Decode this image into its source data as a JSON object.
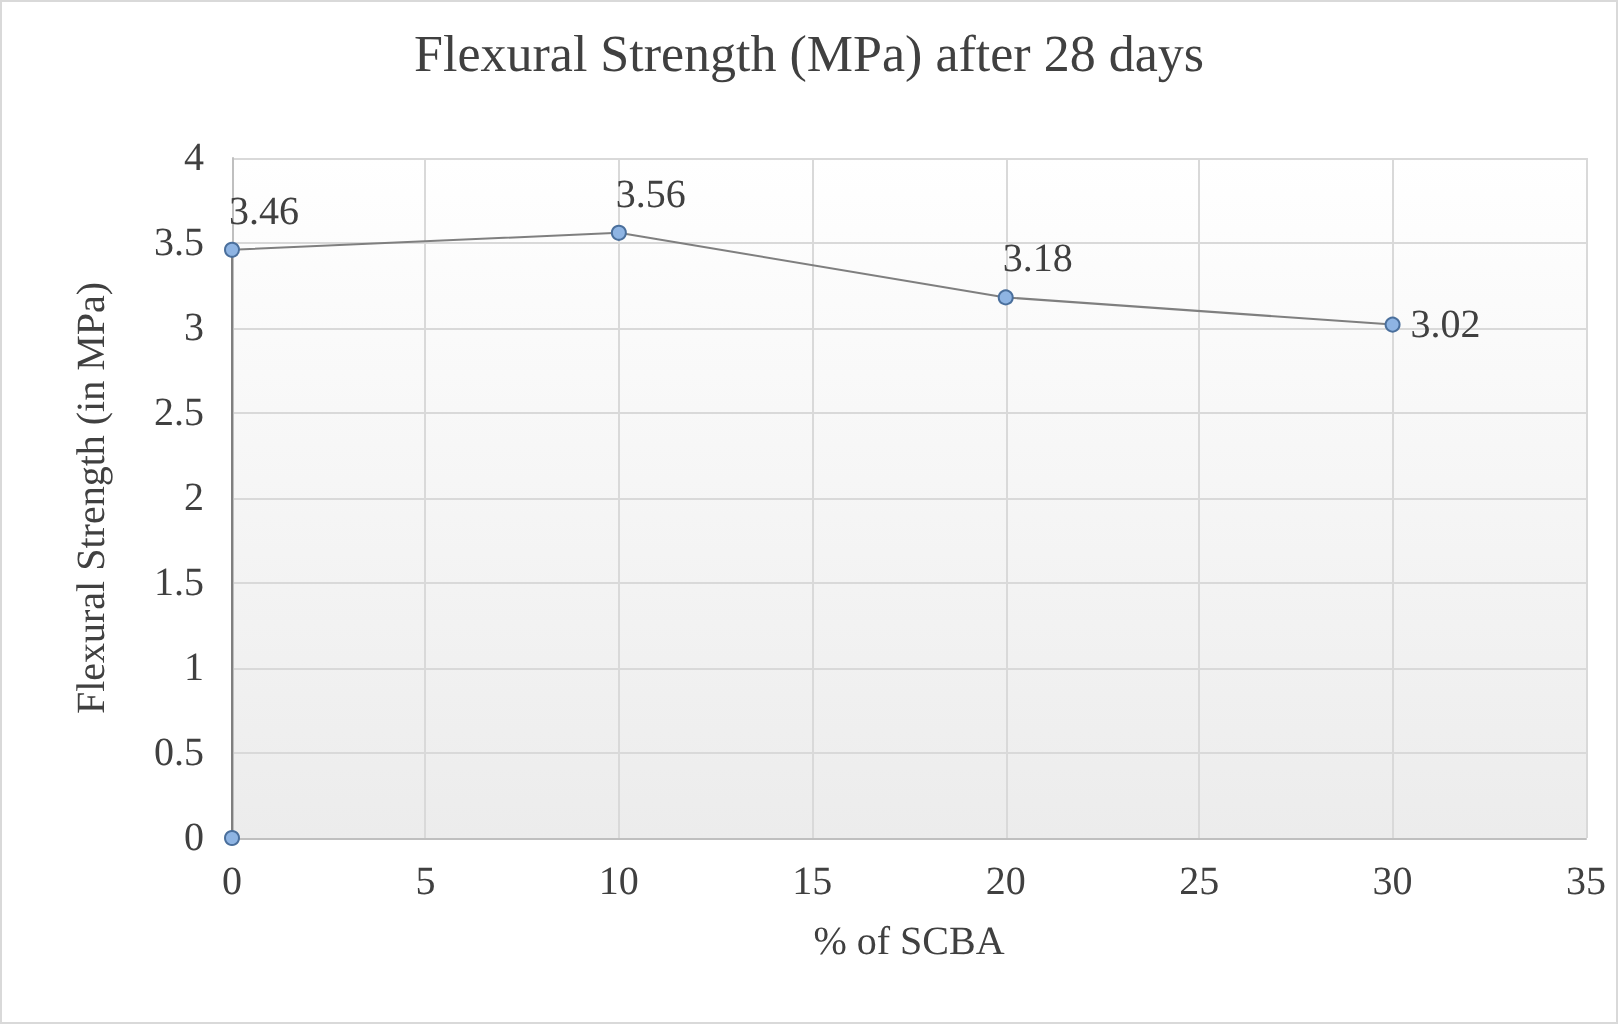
{
  "chart_data": {
    "type": "line",
    "title": "Flexural Strength (MPa) after 28 days",
    "xlabel": "% of SCBA",
    "ylabel": "Flexural Strength (in MPa)",
    "x": [
      0,
      0,
      10,
      20,
      30
    ],
    "series": [
      {
        "color": "#7f7f7f",
        "values": [
          0,
          3.46,
          3.56,
          3.18,
          3.02
        ],
        "value_labels": [
          null,
          "3.46",
          "3.56",
          "3.18",
          "3.02"
        ]
      }
    ],
    "xlim": [
      0,
      35
    ],
    "xticks": [
      0,
      5,
      10,
      15,
      20,
      25,
      30,
      35
    ],
    "ylim": [
      0,
      4
    ],
    "yticks": [
      0,
      0.5,
      1,
      1.5,
      2,
      2.5,
      3,
      3.5,
      4
    ],
    "grid": true,
    "marker": "circle",
    "line_style": "solid"
  }
}
